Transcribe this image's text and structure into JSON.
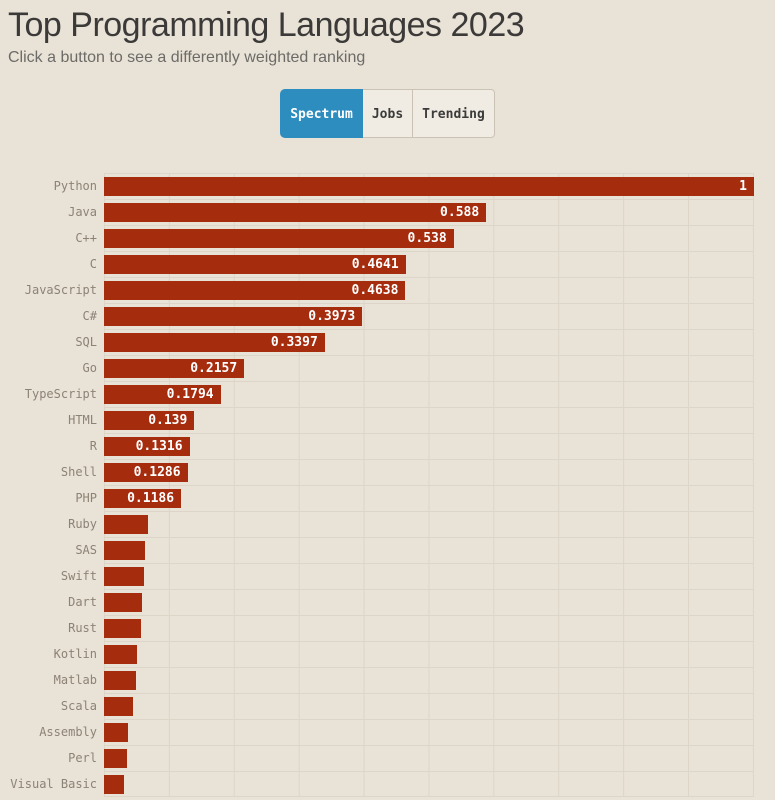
{
  "page": {
    "title": "Top Programming Languages 2023",
    "subtitle": "Click a button to see a differently weighted ranking"
  },
  "buttons": [
    {
      "label": "Spectrum",
      "active": true
    },
    {
      "label": "Jobs",
      "active": false
    },
    {
      "label": "Trending",
      "active": false
    }
  ],
  "colors": {
    "background": "#e9e2d7",
    "bar": "#a62c0e",
    "active_button": "#2d8dbf",
    "gridline": "#ddd5c7",
    "category_label": "#8d8375",
    "value_label": "#ffffff"
  },
  "chart_data": {
    "type": "bar",
    "orientation": "horizontal",
    "title": "Top Programming Languages 2023",
    "xlabel": "",
    "ylabel": "",
    "xlim": [
      0,
      1
    ],
    "gridline_interval": 0.1,
    "grid": true,
    "value_label_min": 0.1,
    "categories": [
      "Python",
      "Java",
      "C++",
      "C",
      "JavaScript",
      "C#",
      "SQL",
      "Go",
      "TypeScript",
      "HTML",
      "R",
      "Shell",
      "PHP",
      "Ruby",
      "SAS",
      "Swift",
      "Dart",
      "Rust",
      "Kotlin",
      "Matlab",
      "Scala",
      "Assembly",
      "Perl",
      "Visual Basic"
    ],
    "values": [
      1,
      0.588,
      0.538,
      0.4641,
      0.4638,
      0.3973,
      0.3397,
      0.2157,
      0.1794,
      0.139,
      0.1316,
      0.1286,
      0.1186,
      0.068,
      0.063,
      0.062,
      0.058,
      0.057,
      0.051,
      0.049,
      0.045,
      0.037,
      0.035,
      0.031
    ]
  }
}
